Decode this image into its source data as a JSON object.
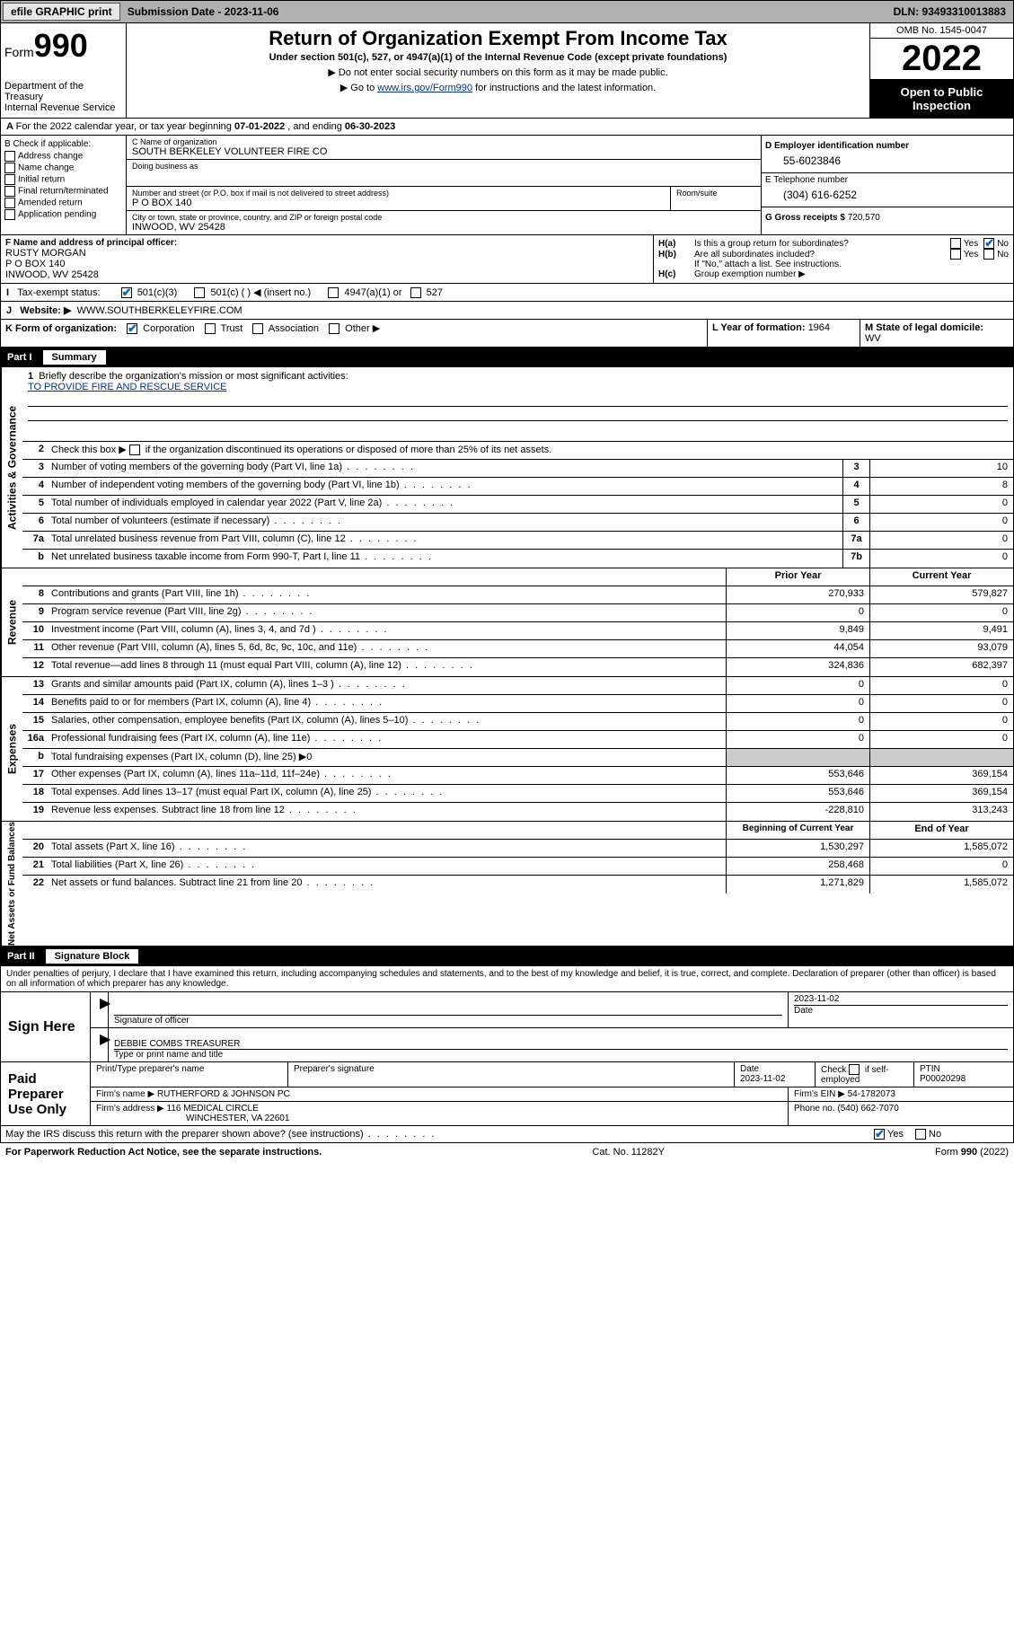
{
  "topbar": {
    "efile": "efile GRAPHIC print",
    "subdate_label": "Submission Date - ",
    "subdate": "2023-11-06",
    "dln": "DLN: 93493310013883"
  },
  "header": {
    "form": "Form",
    "formno": "990",
    "dept": "Department of the Treasury",
    "irs": "Internal Revenue Service",
    "title": "Return of Organization Exempt From Income Tax",
    "sub": "Under section 501(c), 527, or 4947(a)(1) of the Internal Revenue Code (except private foundations)",
    "note1": "▶ Do not enter social security numbers on this form as it may be made public.",
    "note2": "▶ Go to ",
    "link": "www.irs.gov/Form990",
    "note2b": " for instructions and the latest information.",
    "omb": "OMB No. 1545-0047",
    "year": "2022",
    "inspection": "Open to Public Inspection"
  },
  "A": {
    "text": "For the 2022 calendar year, or tax year beginning ",
    "begin": "07-01-2022",
    "mid": " , and ending ",
    "end": "06-30-2023"
  },
  "B": {
    "label": "B Check if applicable:",
    "opts": [
      "Address change",
      "Name change",
      "Initial return",
      "Final return/terminated",
      "Amended return",
      "Application pending"
    ]
  },
  "C": {
    "name_lab": "C Name of organization",
    "name": "SOUTH BERKELEY VOLUNTEER FIRE CO",
    "dba_lab": "Doing business as",
    "street_lab": "Number and street (or P.O. box if mail is not delivered to street address)",
    "room_lab": "Room/suite",
    "street": "P O BOX 140",
    "city_lab": "City or town, state or province, country, and ZIP or foreign postal code",
    "city": "INWOOD, WV  25428"
  },
  "D": {
    "lab": "D Employer identification number",
    "val": "55-6023846"
  },
  "E": {
    "lab": "E Telephone number",
    "val": "(304) 616-6252"
  },
  "G": {
    "lab": "G Gross receipts $ ",
    "val": "720,570"
  },
  "F": {
    "lab": "F  Name and address of principal officer:",
    "name": "RUSTY MORGAN",
    "street": "P O BOX 140",
    "city": "INWOOD, WV  25428"
  },
  "H": {
    "a": "Is this a group return for subordinates?",
    "b": "Are all subordinates included?",
    "bnote": "If \"No,\" attach a list. See instructions.",
    "c": "Group exemption number ▶"
  },
  "I": {
    "lab": "Tax-exempt status:",
    "o1": "501(c)(3)",
    "o2": "501(c) (  ) ◀ (insert no.)",
    "o3": "4947(a)(1) or",
    "o4": "527"
  },
  "J": {
    "lab": "Website: ▶",
    "val": "WWW.SOUTHBERKELEYFIRE.COM"
  },
  "K": {
    "lab": "K Form of organization:",
    "o1": "Corporation",
    "o2": "Trust",
    "o3": "Association",
    "o4": "Other ▶"
  },
  "L": {
    "lab": "L Year of formation: ",
    "val": "1964"
  },
  "M": {
    "lab": "M State of legal domicile:",
    "val": "WV"
  },
  "part1": {
    "n": "Part I",
    "t": "Summary"
  },
  "summary": {
    "q1": "Briefly describe the organization's mission or most significant activities:",
    "mission": "TO PROVIDE FIRE AND RESCUE SERVICE",
    "q2": "Check this box ▶        if the organization discontinued its operations or disposed of more than 25% of its net assets.",
    "rows_gov": [
      {
        "n": "3",
        "t": "Number of voting members of the governing body (Part VI, line 1a)",
        "box": "3",
        "v": "10"
      },
      {
        "n": "4",
        "t": "Number of independent voting members of the governing body (Part VI, line 1b)",
        "box": "4",
        "v": "8"
      },
      {
        "n": "5",
        "t": "Total number of individuals employed in calendar year 2022 (Part V, line 2a)",
        "box": "5",
        "v": "0"
      },
      {
        "n": "6",
        "t": "Total number of volunteers (estimate if necessary)",
        "box": "6",
        "v": "0"
      },
      {
        "n": "7a",
        "t": "Total unrelated business revenue from Part VIII, column (C), line 12",
        "box": "7a",
        "v": "0"
      },
      {
        "n": "b",
        "t": "Net unrelated business taxable income from Form 990-T, Part I, line 11",
        "box": "7b",
        "v": "0"
      }
    ],
    "col_prior": "Prior Year",
    "col_current": "Current Year",
    "rows_rev": [
      {
        "n": "8",
        "t": "Contributions and grants (Part VIII, line 1h)",
        "p": "270,933",
        "c": "579,827"
      },
      {
        "n": "9",
        "t": "Program service revenue (Part VIII, line 2g)",
        "p": "0",
        "c": "0"
      },
      {
        "n": "10",
        "t": "Investment income (Part VIII, column (A), lines 3, 4, and 7d )",
        "p": "9,849",
        "c": "9,491"
      },
      {
        "n": "11",
        "t": "Other revenue (Part VIII, column (A), lines 5, 6d, 8c, 9c, 10c, and 11e)",
        "p": "44,054",
        "c": "93,079"
      },
      {
        "n": "12",
        "t": "Total revenue—add lines 8 through 11 (must equal Part VIII, column (A), line 12)",
        "p": "324,836",
        "c": "682,397"
      }
    ],
    "rows_exp": [
      {
        "n": "13",
        "t": "Grants and similar amounts paid (Part IX, column (A), lines 1–3 )",
        "p": "0",
        "c": "0"
      },
      {
        "n": "14",
        "t": "Benefits paid to or for members (Part IX, column (A), line 4)",
        "p": "0",
        "c": "0"
      },
      {
        "n": "15",
        "t": "Salaries, other compensation, employee benefits (Part IX, column (A), lines 5–10)",
        "p": "0",
        "c": "0"
      },
      {
        "n": "16a",
        "t": "Professional fundraising fees (Part IX, column (A), line 11e)",
        "p": "0",
        "c": "0"
      },
      {
        "n": "b",
        "t": "Total fundraising expenses (Part IX, column (D), line 25) ▶0",
        "p": "",
        "c": "",
        "shade": true
      },
      {
        "n": "17",
        "t": "Other expenses (Part IX, column (A), lines 11a–11d, 11f–24e)",
        "p": "553,646",
        "c": "369,154"
      },
      {
        "n": "18",
        "t": "Total expenses. Add lines 13–17 (must equal Part IX, column (A), line 25)",
        "p": "553,646",
        "c": "369,154"
      },
      {
        "n": "19",
        "t": "Revenue less expenses. Subtract line 18 from line 12",
        "p": "-228,810",
        "c": "313,243"
      }
    ],
    "col_begin": "Beginning of Current Year",
    "col_end": "End of Year",
    "rows_net": [
      {
        "n": "20",
        "t": "Total assets (Part X, line 16)",
        "p": "1,530,297",
        "c": "1,585,072"
      },
      {
        "n": "21",
        "t": "Total liabilities (Part X, line 26)",
        "p": "258,468",
        "c": "0"
      },
      {
        "n": "22",
        "t": "Net assets or fund balances. Subtract line 21 from line 20",
        "p": "1,271,829",
        "c": "1,585,072"
      }
    ],
    "vlab_gov": "Activities & Governance",
    "vlab_rev": "Revenue",
    "vlab_exp": "Expenses",
    "vlab_net": "Net Assets or Fund Balances"
  },
  "part2": {
    "n": "Part II",
    "t": "Signature Block"
  },
  "sig": {
    "jurat": "Under penalties of perjury, I declare that I have examined this return, including accompanying schedules and statements, and to the best of my knowledge and belief, it is true, correct, and complete. Declaration of preparer (other than officer) is based on all information of which preparer has any knowledge.",
    "sign_here": "Sign Here",
    "sig_officer": "Signature of officer",
    "date": "Date",
    "date_val": "2023-11-02",
    "name_title": "DEBBIE COMBS TREASURER",
    "name_title_lab": "Type or print name and title",
    "paid": "Paid Preparer Use Only",
    "prep_name_lab": "Print/Type preparer's name",
    "prep_sig_lab": "Preparer's signature",
    "prep_date_lab": "Date",
    "prep_date": "2023-11-02",
    "check_lab": "Check          if self-employed",
    "ptin_lab": "PTIN",
    "ptin": "P00020298",
    "firm_name_lab": "Firm's name     ▶",
    "firm_name": "RUTHERFORD & JOHNSON PC",
    "firm_ein_lab": "Firm's EIN ▶",
    "firm_ein": "54-1782073",
    "firm_addr_lab": "Firm's address ▶",
    "firm_addr1": "116 MEDICAL CIRCLE",
    "firm_addr2": "WINCHESTER, VA  22601",
    "phone_lab": "Phone no. ",
    "phone": "(540) 662-7070",
    "may_irs": "May the IRS discuss this return with the preparer shown above? (see instructions)"
  },
  "footer": {
    "left": "For Paperwork Reduction Act Notice, see the separate instructions.",
    "mid": "Cat. No. 11282Y",
    "right": "Form 990 (2022)"
  },
  "yesno": {
    "yes": "Yes",
    "no": "No"
  }
}
